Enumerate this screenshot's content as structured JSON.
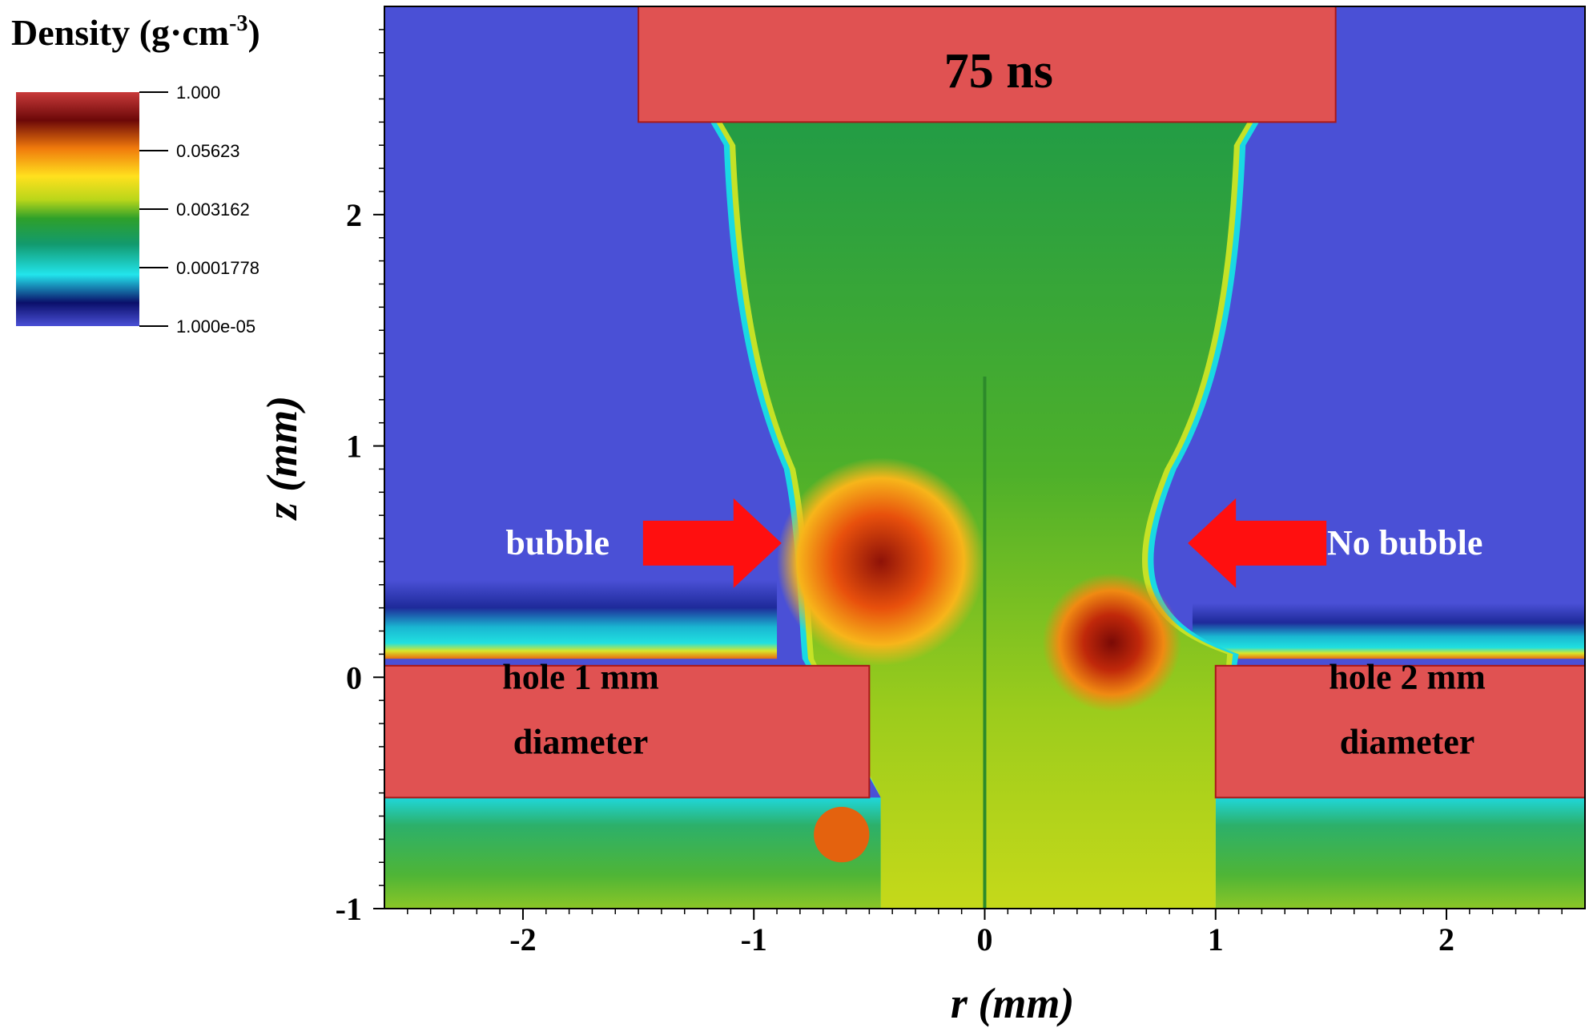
{
  "chart_data": {
    "type": "heatmap",
    "title": "75 ns",
    "xlabel": "r (mm)",
    "ylabel": "z (mm)",
    "xlim": [
      -2.6,
      2.6
    ],
    "ylim": [
      -1.0,
      2.9
    ],
    "x_ticks": [
      -2,
      -1,
      0,
      1,
      2
    ],
    "y_ticks": [
      -1,
      0,
      1,
      2
    ],
    "colorbar": {
      "title_main": "Density (g·cm",
      "title_exp": "-3",
      "title_close": ")",
      "scale": "log",
      "ticks": [
        "1.000",
        "0.05623",
        "0.003162",
        "0.0001778",
        "1.000e-05"
      ],
      "tick_values": [
        1.0,
        0.05623,
        0.003162,
        0.0001778,
        1e-05
      ],
      "colors": [
        "#4a50d6",
        "#0a0f6a",
        "#22e4ec",
        "#129a6e",
        "#2ea02a",
        "#b9d61a",
        "#ffe11e",
        "#f07a0c",
        "#6c0808",
        "#c83a3a"
      ]
    },
    "annotations": [
      {
        "text": "bubble",
        "r": -1.85,
        "z": 0.58,
        "arrow_to_r": -0.88,
        "arrow_from_r": -1.48
      },
      {
        "text": "No bubble",
        "r": 1.82,
        "z": 0.58,
        "arrow_to_r": 0.88,
        "arrow_from_r": 1.48
      }
    ],
    "plates": [
      {
        "label_line1": "hole 1 mm",
        "label_line2": "diameter",
        "r_from": -2.6,
        "r_to": -0.5,
        "z_top": 0.05,
        "z_bottom": -0.52
      },
      {
        "label_line1": "hole 2 mm",
        "label_line2": "diameter",
        "r_from": 1.0,
        "r_to": 2.6,
        "z_top": 0.05,
        "z_bottom": -0.52
      },
      {
        "label_line1": "",
        "label_line2": "",
        "r_from": -1.5,
        "r_to": 1.52,
        "z_top": 2.9,
        "z_bottom": 2.4
      }
    ],
    "colors": {
      "background_gas": "#4a50d6",
      "solid": "#e05252",
      "plume": "#1f9a32",
      "arrow": "#ff0f0f"
    }
  }
}
